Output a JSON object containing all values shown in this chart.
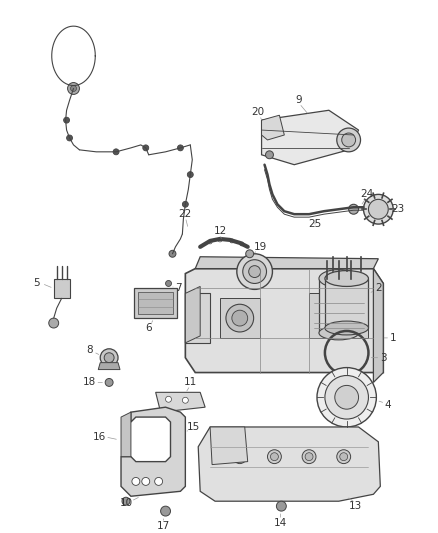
{
  "bg_color": "#ffffff",
  "line_color": "#444444",
  "label_color": "#333333",
  "label_fontsize": 7.5,
  "gray_line": "#999999",
  "part_gray": "#cccccc",
  "dark": "#444444"
}
